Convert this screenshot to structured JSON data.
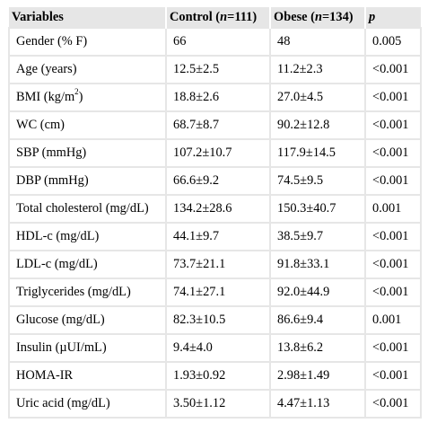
{
  "table": {
    "headers": [
      {
        "label": "Variables"
      },
      {
        "pre": "Control (",
        "em": "n",
        "post": "=111)"
      },
      {
        "pre": "Obese (",
        "em": "n",
        "post": "=134)"
      },
      {
        "em_only": "p"
      }
    ],
    "rows": [
      {
        "variable": "Gender (% F)",
        "control": "66",
        "obese": "48",
        "p": "0.005"
      },
      {
        "variable": "Age (years)",
        "control": "12.5±2.5",
        "obese": "11.2±2.3",
        "p": "<0.001"
      },
      {
        "variable_pre": "BMI (kg/m",
        "variable_sup": "2",
        "variable_post": ")",
        "control": "18.8±2.6",
        "obese": "27.0±4.5",
        "p": "<0.001"
      },
      {
        "variable": "WC (cm)",
        "control": "68.7±8.7",
        "obese": "90.2±12.8",
        "p": "<0.001"
      },
      {
        "variable": "SBP (mmHg)",
        "control": "107.2±10.7",
        "obese": "117.9±14.5",
        "p": "<0.001"
      },
      {
        "variable": "DBP (mmHg)",
        "control": "66.6±9.2",
        "obese": "74.5±9.5",
        "p": "<0.001"
      },
      {
        "variable": "Total cholesterol (mg/dL)",
        "control": "134.2±28.6",
        "obese": "150.3±40.7",
        "p": "0.001"
      },
      {
        "variable": "HDL-c (mg/dL)",
        "control": "44.1±9.7",
        "obese": "38.5±9.7",
        "p": "<0.001"
      },
      {
        "variable": "LDL-c (mg/dL)",
        "control": "73.7±21.1",
        "obese": "91.8±33.1",
        "p": "<0.001"
      },
      {
        "variable": "Triglycerides (mg/dL)",
        "control": "74.1±27.1",
        "obese": "92.0±44.9",
        "p": "<0.001"
      },
      {
        "variable": "Glucose (mg/dL)",
        "control": "82.3±10.5",
        "obese": "86.6±9.4",
        "p": "0.001"
      },
      {
        "variable": "Insulin (µUI/mL)",
        "control": "9.4±4.0",
        "obese": "13.8±6.2",
        "p": "<0.001"
      },
      {
        "variable": "HOMA-IR",
        "control": "1.93±0.92",
        "obese": "2.98±1.49",
        "p": "<0.001"
      },
      {
        "variable": "Uric acid (mg/dL)",
        "control": "3.50±1.12",
        "obese": "4.47±1.13",
        "p": "<0.001"
      }
    ]
  }
}
